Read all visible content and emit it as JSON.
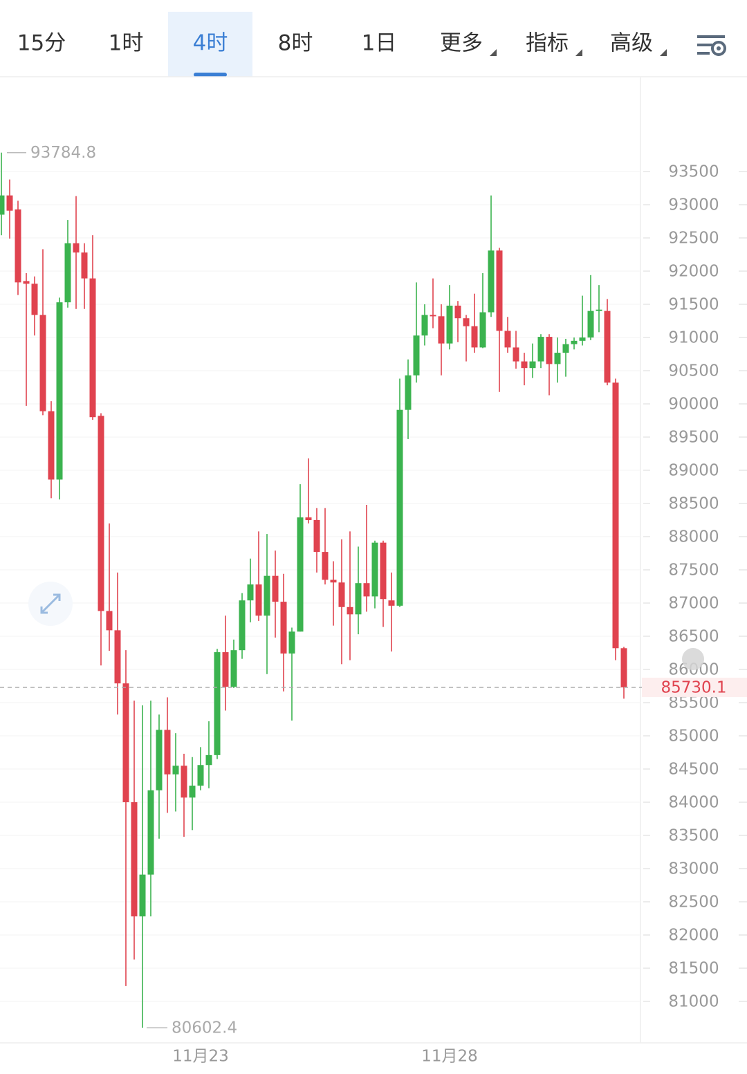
{
  "toolbar": {
    "tabs": [
      "15分",
      "1时",
      "4时",
      "8时",
      "1日"
    ],
    "menus": [
      "更多",
      "指标",
      "高级"
    ],
    "active_tab": 2
  },
  "chart_data": {
    "type": "candlestick",
    "x": [
      null,
      null,
      null,
      null,
      null,
      null,
      null,
      null,
      null,
      null,
      null,
      null,
      null,
      null,
      null,
      null,
      null,
      null,
      null,
      null,
      null,
      null,
      null,
      null,
      "11月23",
      null,
      null,
      null,
      null,
      null,
      null,
      null,
      null,
      null,
      null,
      null,
      null,
      null,
      null,
      null,
      null,
      null,
      null,
      null,
      null,
      null,
      null,
      null,
      null,
      null,
      null,
      null,
      null,
      null,
      "11月28",
      null,
      null,
      null,
      null,
      null,
      null,
      null,
      null,
      null,
      null,
      null,
      null,
      null,
      null,
      null,
      null,
      null,
      null,
      null,
      null,
      null
    ],
    "open": [
      92850,
      93140,
      92930,
      91850,
      91810,
      91340,
      89890,
      88860,
      91530,
      92420,
      92280,
      91890,
      89820,
      86880,
      86590,
      85790,
      84000,
      82280,
      82910,
      84180,
      85090,
      84420,
      84550,
      84070,
      84250,
      84560,
      84710,
      86260,
      85740,
      86290,
      87040,
      87280,
      86810,
      87410,
      87020,
      86240,
      86570,
      88290,
      88250,
      87770,
      87350,
      87310,
      86940,
      86830,
      87300,
      87100,
      87910,
      87040,
      86960,
      89910,
      90430,
      91030,
      91340,
      91320,
      90910,
      91480,
      91290,
      91170,
      90850,
      91380,
      92310,
      91100,
      90850,
      90640,
      90540,
      90640,
      91010,
      90600,
      90770,
      90900,
      90950,
      91000,
      91400,
      91400,
      90320,
      86320
    ],
    "high": [
      93784.8,
      93380,
      93060,
      91970,
      91920,
      92330,
      90040,
      91600,
      92770,
      93130,
      92420,
      92540,
      89860,
      88200,
      87460,
      86290,
      85530,
      85460,
      85530,
      85320,
      85580,
      85040,
      84730,
      84680,
      84830,
      85220,
      86310,
      86810,
      86450,
      87150,
      87670,
      88080,
      88040,
      87790,
      87440,
      86630,
      88790,
      89180,
      88430,
      88430,
      87630,
      87960,
      88080,
      87850,
      88480,
      87940,
      87940,
      87460,
      90380,
      90670,
      91830,
      91500,
      91890,
      91500,
      91790,
      91550,
      91340,
      91660,
      91970,
      93140,
      92350,
      91310,
      91100,
      90770,
      90910,
      91050,
      91050,
      91000,
      90980,
      91000,
      91630,
      91940,
      91790,
      91580,
      90380,
      86340
    ],
    "low": [
      92540,
      92490,
      91640,
      89970,
      91030,
      89830,
      88580,
      88560,
      91450,
      91430,
      91430,
      89760,
      86060,
      86280,
      85320,
      81230,
      81630,
      80602.4,
      82280,
      83450,
      83840,
      83860,
      83480,
      83580,
      84180,
      84210,
      84650,
      85380,
      85720,
      86160,
      86710,
      86730,
      85930,
      86480,
      85670,
      85230,
      86570,
      88200,
      87460,
      87280,
      86660,
      86080,
      86140,
      86530,
      86870,
      86920,
      86640,
      86270,
      86940,
      89470,
      90320,
      90880,
      91140,
      90430,
      90820,
      90930,
      90640,
      90770,
      90840,
      91310,
      90180,
      90770,
      90530,
      90280,
      90390,
      90540,
      90130,
      90320,
      90410,
      90820,
      90880,
      90960,
      91080,
      90280,
      86140,
      85560
    ],
    "close": [
      93140,
      92910,
      91830,
      91810,
      91340,
      89890,
      88860,
      91530,
      92420,
      92280,
      91890,
      89800,
      86880,
      86590,
      85790,
      84000,
      82280,
      82910,
      84180,
      85090,
      84420,
      84550,
      84070,
      84250,
      84560,
      84710,
      86260,
      85740,
      86290,
      87040,
      87280,
      86810,
      87410,
      87020,
      86240,
      86570,
      88290,
      88250,
      87770,
      87350,
      87310,
      86940,
      86830,
      87300,
      87100,
      87910,
      87060,
      86960,
      89910,
      90430,
      91030,
      91340,
      91320,
      90910,
      91480,
      91290,
      91170,
      90850,
      91380,
      92310,
      91100,
      90850,
      90640,
      90540,
      90640,
      91010,
      90600,
      90770,
      90900,
      90950,
      91000,
      91400,
      91420,
      90320,
      86320,
      85730.1
    ],
    "up_color": "#3bb34f",
    "down_color": "#e0434f",
    "ylim": [
      80375,
      94917
    ],
    "yticks": [
      81000,
      81500,
      82000,
      82500,
      83000,
      83500,
      84000,
      84500,
      85000,
      85500,
      86000,
      86500,
      87000,
      87500,
      88000,
      88500,
      89000,
      89500,
      90000,
      90500,
      91000,
      91500,
      92000,
      92500,
      93000,
      93500
    ],
    "grid": true
  }
}
